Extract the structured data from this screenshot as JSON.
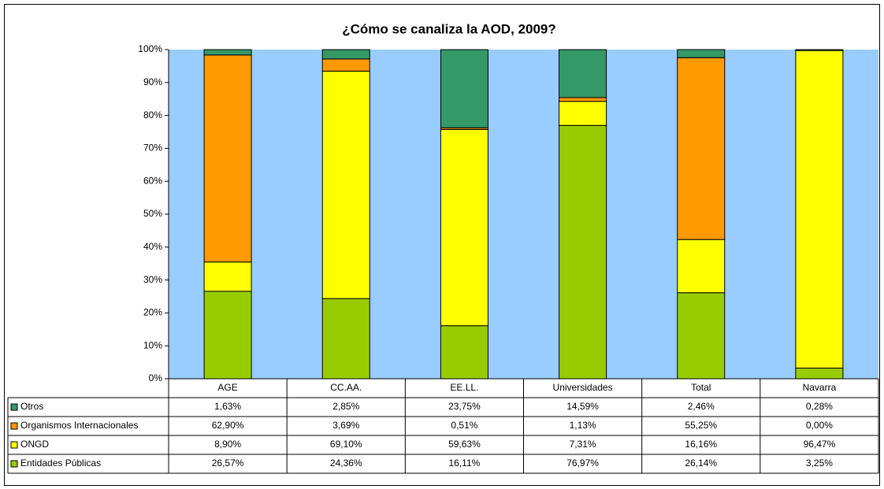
{
  "chart_data": {
    "type": "stacked_bar",
    "title": "¿Cómo se canaliza la AOD, 2009?",
    "categories": [
      "AGE",
      "CC.AA.",
      "EE.LL.",
      "Universidades",
      "Total",
      "Navarra"
    ],
    "series": [
      {
        "name": "Otros",
        "color": "#339966",
        "values": [
          1.63,
          2.85,
          23.75,
          14.59,
          2.46,
          0.28
        ],
        "value_labels": [
          "1,63%",
          "2,85%",
          "23,75%",
          "14,59%",
          "2,46%",
          "0,28%"
        ]
      },
      {
        "name": "Organismos Internacionales",
        "color": "#ff9900",
        "values": [
          62.9,
          3.69,
          0.51,
          1.13,
          55.25,
          0.0
        ],
        "value_labels": [
          "62,90%",
          "3,69%",
          "0,51%",
          "1,13%",
          "55,25%",
          "0,00%"
        ]
      },
      {
        "name": "ONGD",
        "color": "#ffff00",
        "values": [
          8.9,
          69.1,
          59.63,
          7.31,
          16.16,
          96.47
        ],
        "value_labels": [
          "8,90%",
          "69,10%",
          "59,63%",
          "7,31%",
          "16,16%",
          "96,47%"
        ]
      },
      {
        "name": "Entidades Públicas",
        "color": "#99cc00",
        "values": [
          26.57,
          24.36,
          16.11,
          76.97,
          26.14,
          3.25
        ],
        "value_labels": [
          "26,57%",
          "24,36%",
          "16,11%",
          "76,97%",
          "26,14%",
          "3,25%"
        ]
      }
    ],
    "ylim": [
      0,
      100
    ],
    "yticks": [
      {
        "value": 0,
        "label": "0%"
      },
      {
        "value": 10,
        "label": "10%"
      },
      {
        "value": 20,
        "label": "20%"
      },
      {
        "value": 30,
        "label": "30%"
      },
      {
        "value": 40,
        "label": "40%"
      },
      {
        "value": 50,
        "label": "50%"
      },
      {
        "value": 60,
        "label": "60%"
      },
      {
        "value": 70,
        "label": "70%"
      },
      {
        "value": 80,
        "label": "80%"
      },
      {
        "value": 90,
        "label": "90%"
      },
      {
        "value": 100,
        "label": "100%"
      }
    ],
    "grid": false,
    "plot_background": "#99ccff"
  }
}
